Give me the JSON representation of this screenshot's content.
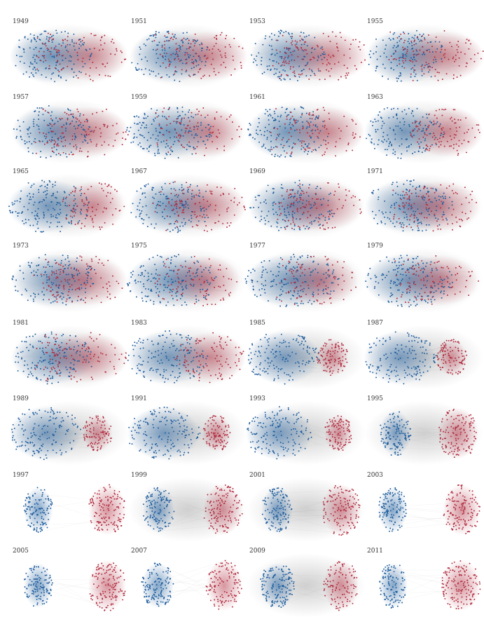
{
  "title": "",
  "colors": {
    "democrat": "#1d5c9c",
    "republican": "#b02b3e",
    "edge": "#9a9a9a"
  },
  "panels": [
    {
      "year": "1949",
      "polarization": 0.35,
      "dem_share": 0.6
    },
    {
      "year": "1951",
      "polarization": 0.3,
      "dem_share": 0.54
    },
    {
      "year": "1953",
      "polarization": 0.3,
      "dem_share": 0.49
    },
    {
      "year": "1955",
      "polarization": 0.3,
      "dem_share": 0.53
    },
    {
      "year": "1957",
      "polarization": 0.25,
      "dem_share": 0.54
    },
    {
      "year": "1959",
      "polarization": 0.35,
      "dem_share": 0.65
    },
    {
      "year": "1961",
      "polarization": 0.35,
      "dem_share": 0.6
    },
    {
      "year": "1963",
      "polarization": 0.4,
      "dem_share": 0.59
    },
    {
      "year": "1965",
      "polarization": 0.45,
      "dem_share": 0.68
    },
    {
      "year": "1967",
      "polarization": 0.25,
      "dem_share": 0.57
    },
    {
      "year": "1969",
      "polarization": 0.1,
      "dem_share": 0.56
    },
    {
      "year": "1971",
      "polarization": 0.15,
      "dem_share": 0.59
    },
    {
      "year": "1973",
      "polarization": 0.15,
      "dem_share": 0.56
    },
    {
      "year": "1975",
      "polarization": 0.2,
      "dem_share": 0.67
    },
    {
      "year": "1977",
      "polarization": 0.15,
      "dem_share": 0.67
    },
    {
      "year": "1979",
      "polarization": 0.2,
      "dem_share": 0.63
    },
    {
      "year": "1981",
      "polarization": 0.25,
      "dem_share": 0.56
    },
    {
      "year": "1983",
      "polarization": 0.4,
      "dem_share": 0.62
    },
    {
      "year": "1985",
      "polarization": 0.55,
      "dem_share": 0.58
    },
    {
      "year": "1987",
      "polarization": 0.6,
      "dem_share": 0.59
    },
    {
      "year": "1989",
      "polarization": 0.6,
      "dem_share": 0.6
    },
    {
      "year": "1991",
      "polarization": 0.62,
      "dem_share": 0.61
    },
    {
      "year": "1993",
      "polarization": 0.75,
      "dem_share": 0.59
    },
    {
      "year": "1995",
      "polarization": 0.82,
      "dem_share": 0.47
    },
    {
      "year": "1997",
      "polarization": 0.95,
      "dem_share": 0.47
    },
    {
      "year": "1999",
      "polarization": 0.85,
      "dem_share": 0.48
    },
    {
      "year": "2001",
      "polarization": 0.85,
      "dem_share": 0.48
    },
    {
      "year": "2003",
      "polarization": 0.95,
      "dem_share": 0.47
    },
    {
      "year": "2005",
      "polarization": 0.95,
      "dem_share": 0.46
    },
    {
      "year": "2007",
      "polarization": 0.9,
      "dem_share": 0.54
    },
    {
      "year": "2009",
      "polarization": 0.85,
      "dem_share": 0.59
    },
    {
      "year": "2011",
      "polarization": 0.92,
      "dem_share": 0.44
    }
  ]
}
